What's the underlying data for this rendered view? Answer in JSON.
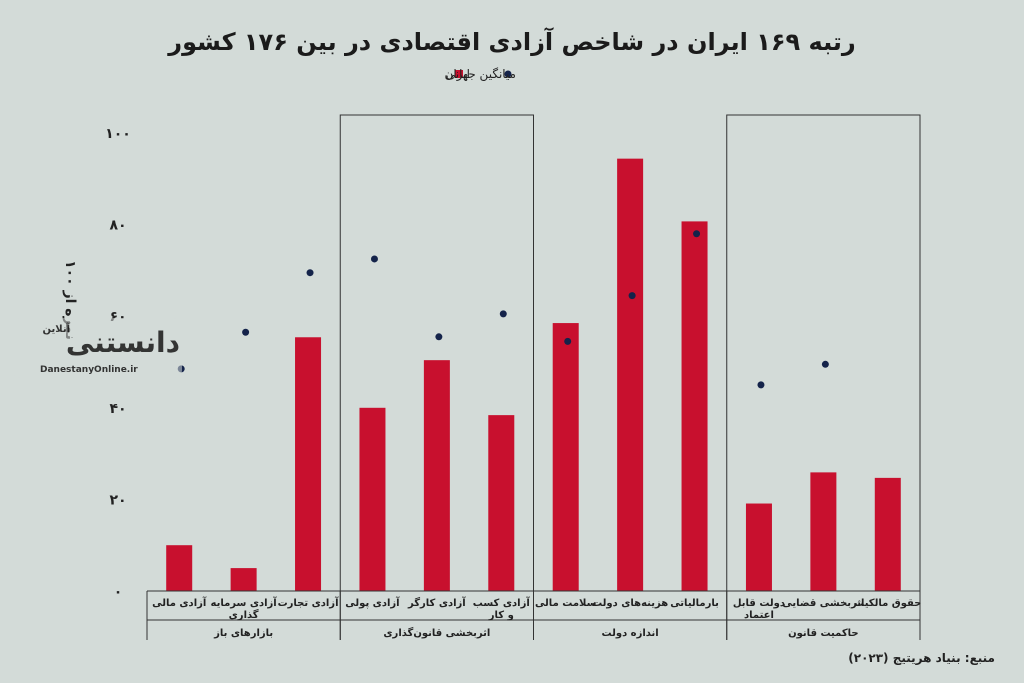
{
  "chart_data": {
    "type": "bar",
    "title": "رتبه ۱۶۹ ایران در شاخص آزادی اقتصادی در بین ۱۷۶ کشور",
    "ylabel": "نمره از ۱۰۰",
    "ylim": [
      0,
      100
    ],
    "yticks": [
      0,
      20,
      40,
      60,
      80,
      100
    ],
    "ytick_labels": [
      "۰",
      "۲۰",
      "۴۰",
      "۶۰",
      "۸۰",
      "۱۰۰"
    ],
    "legend_placement": "top-center",
    "categories": [
      "حقوق مالکیت",
      "اثربخشی قضایی",
      "دولت قابل اعتماد",
      "بارمالیاتی",
      "هزینه‌های دولت",
      "سلامت مالی",
      "آزادی کسب و کار",
      "آزادی کارگر",
      "آزادی پولی",
      "آزادی تجارت",
      "آزادی سرمایه گذاری",
      "آزادی مالی"
    ],
    "groups": [
      {
        "label": "حاکمیت قانون",
        "size": 3,
        "boxed": true
      },
      {
        "label": "اندازه دولت",
        "size": 3,
        "boxed": false
      },
      {
        "label": "اثربخشی قانون‌گذاری",
        "size": 3,
        "boxed": true
      },
      {
        "label": "بازارهای باز",
        "size": 3,
        "boxed": false
      }
    ],
    "series": [
      {
        "name": "ایران",
        "kind": "bar",
        "color": "#c8102e",
        "values": [
          24.7,
          25.9,
          19.1,
          80.7,
          94.4,
          58.5,
          38.4,
          50.4,
          40.0,
          55.4,
          5.0,
          10.0
        ]
      },
      {
        "name": "میانگین جهانی",
        "kind": "dot",
        "color": "#14234a",
        "values": [
          null,
          49.5,
          45.0,
          78.0,
          64.5,
          54.5,
          60.5,
          55.5,
          72.5,
          69.5,
          56.5,
          48.5
        ]
      }
    ]
  },
  "source": {
    "text": "منبع: بنیاد هریتیج (۲۰۲۳)"
  },
  "watermark": {
    "logo_text": "دانستنی",
    "logo_sub": "آنلاین",
    "url": "DanestanyOnline.ir"
  }
}
